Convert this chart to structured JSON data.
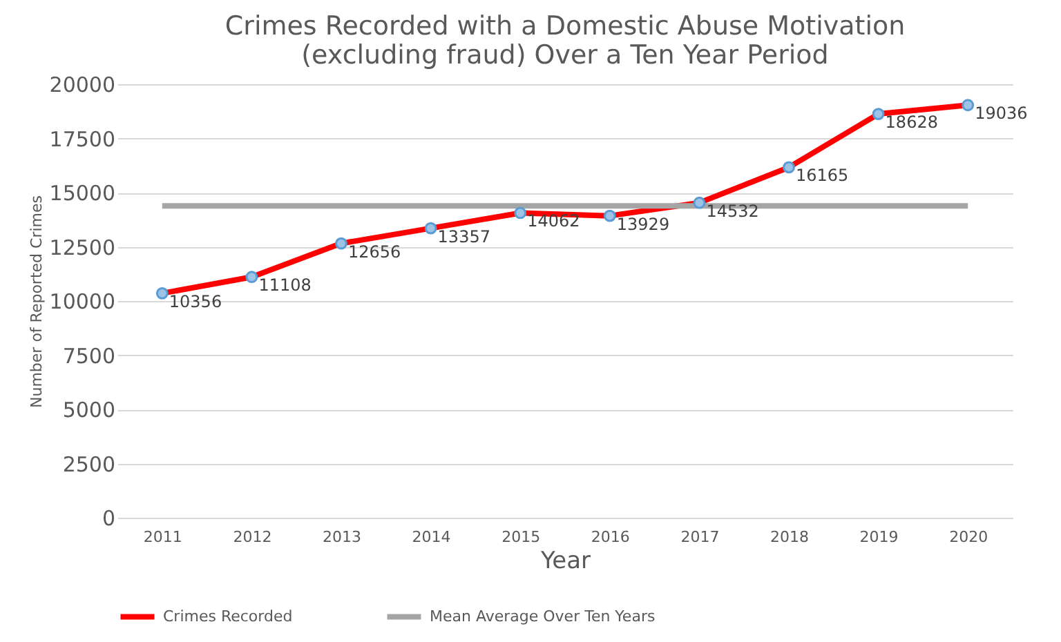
{
  "chart_data": {
    "type": "line",
    "title": "Crimes Recorded with a Domestic Abuse Motivation\n(excluding fraud) Over a Ten Year Period",
    "xlabel": "Year",
    "ylabel": "Number of Reported Crimes",
    "categories": [
      "2011",
      "2012",
      "2013",
      "2014",
      "2015",
      "2016",
      "2017",
      "2018",
      "2019",
      "2020"
    ],
    "series": [
      {
        "name": "Crimes Recorded",
        "color": "#ff0000",
        "marker": "circle",
        "values": [
          10356,
          11108,
          12656,
          13357,
          14062,
          13929,
          14532,
          16165,
          18628,
          19036
        ],
        "value_labels": [
          "10356",
          "11108",
          "12656",
          "13357",
          "14062",
          "13929",
          "14532",
          "16165",
          "18628",
          "19036"
        ]
      },
      {
        "name": "Mean Average Over Ten Years",
        "color": "#a5a5a5",
        "marker": "none",
        "values": [
          14383,
          14383,
          14383,
          14383,
          14383,
          14383,
          14383,
          14383,
          14383,
          14383
        ]
      }
    ],
    "ylim": [
      0,
      20000
    ],
    "yticks": [
      0,
      2500,
      5000,
      7500,
      10000,
      12500,
      15000,
      17500,
      20000
    ],
    "grid": "y",
    "legend": "bottom",
    "line_style": "solid"
  }
}
